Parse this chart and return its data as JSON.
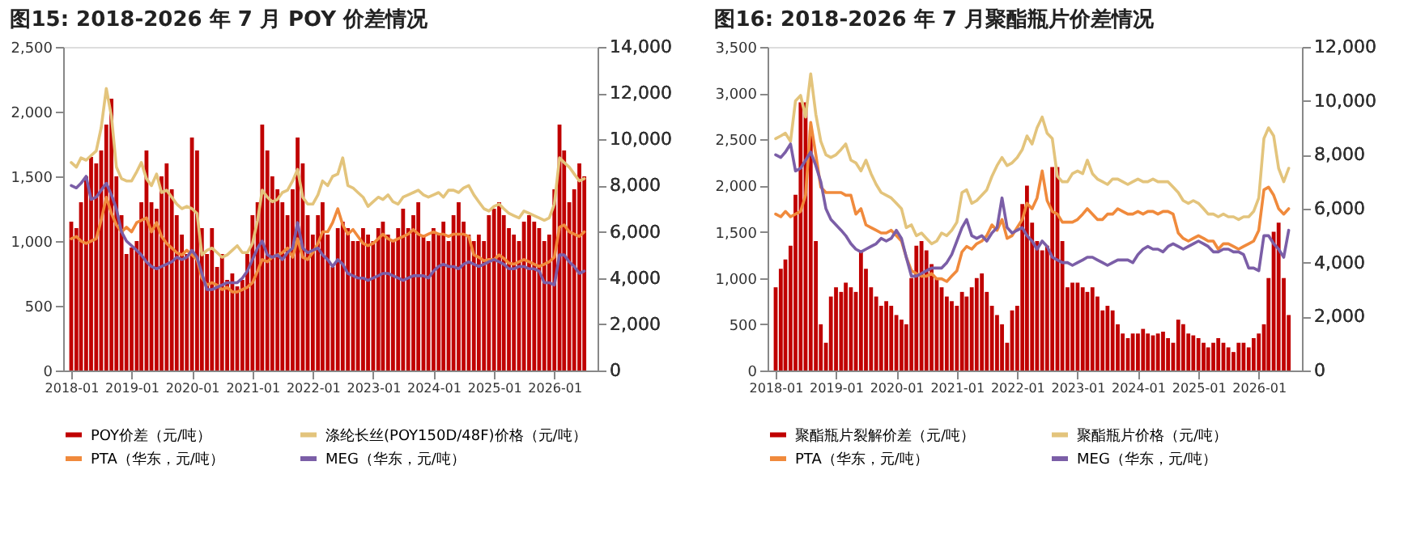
{
  "chart_data": [
    {
      "type": "bar",
      "title": "图15:  2018-2026 年 7 月 POY 价差情况",
      "x": [
        "2018-01",
        "2018-02",
        "2018-03",
        "2018-04",
        "2018-05",
        "2018-06",
        "2018-07",
        "2018-08",
        "2018-09",
        "2018-10",
        "2018-11",
        "2018-12",
        "2019-01",
        "2019-02",
        "2019-03",
        "2019-04",
        "2019-05",
        "2019-06",
        "2019-07",
        "2019-08",
        "2019-09",
        "2019-10",
        "2019-11",
        "2019-12",
        "2020-01",
        "2020-02",
        "2020-03",
        "2020-04",
        "2020-05",
        "2020-06",
        "2020-07",
        "2020-08",
        "2020-09",
        "2020-10",
        "2020-11",
        "2020-12",
        "2021-01",
        "2021-02",
        "2021-03",
        "2021-04",
        "2021-05",
        "2021-06",
        "2021-07",
        "2021-08",
        "2021-09",
        "2021-10",
        "2021-11",
        "2021-12",
        "2022-01",
        "2022-02",
        "2022-03",
        "2022-04",
        "2022-05",
        "2022-06",
        "2022-07",
        "2022-08",
        "2022-09",
        "2022-10",
        "2022-11",
        "2022-12",
        "2023-01",
        "2023-02",
        "2023-03",
        "2023-04",
        "2023-05",
        "2023-06",
        "2023-07",
        "2023-08",
        "2023-09",
        "2023-10",
        "2023-11",
        "2023-12",
        "2024-01",
        "2024-02",
        "2024-03",
        "2024-04",
        "2024-05",
        "2024-06",
        "2024-07",
        "2024-08",
        "2024-09",
        "2024-10",
        "2024-11",
        "2024-12",
        "2025-01",
        "2025-02",
        "2025-03",
        "2025-04",
        "2025-05",
        "2025-06",
        "2025-07",
        "2025-08",
        "2025-09",
        "2025-10",
        "2025-11",
        "2025-12",
        "2026-01",
        "2026-02",
        "2026-03",
        "2026-04",
        "2026-05",
        "2026-06",
        "2026-07"
      ],
      "xlim": [
        "2018-01",
        "2026-08"
      ],
      "xticks": [
        "2018-01",
        "2019-01",
        "2020-01",
        "2021-01",
        "2022-01",
        "2023-01",
        "2024-01",
        "2025-01",
        "2026-01"
      ],
      "ylim": [
        0,
        2500
      ],
      "yticks": [
        0,
        500,
        {
          "value": 1000,
          "label": "1,000"
        },
        {
          "value": 1500,
          "label": "1,500"
        },
        {
          "value": 2000,
          "label": "2,000"
        },
        {
          "value": 2500,
          "label": "2,500"
        }
      ],
      "y2lim": [
        0,
        14000
      ],
      "y2ticks": [
        0,
        {
          "value": 2000,
          "label": "2,000"
        },
        {
          "value": 4000,
          "label": "4,000"
        },
        {
          "value": 6000,
          "label": "6,000"
        },
        {
          "value": 8000,
          "label": "8,000"
        },
        {
          "value": 10000,
          "label": "10,000"
        },
        {
          "value": 12000,
          "label": "12,000"
        },
        {
          "value": 14000,
          "label": "14,000"
        }
      ],
      "grid": false,
      "legend": "bottom",
      "series": [
        {
          "name": "POY价差（元/吨）",
          "color": "#c00000",
          "values": [
            1150,
            1100,
            1300,
            1500,
            1650,
            1600,
            1700,
            1900,
            2100,
            1500,
            1200,
            900,
            950,
            1000,
            1300,
            1700,
            1300,
            1250,
            1500,
            1600,
            1400,
            1200,
            1050,
            900,
            1800,
            1700,
            1100,
            900,
            1100,
            800,
            900,
            700,
            750,
            650,
            700,
            900,
            1200,
            1300,
            1900,
            1700,
            1500,
            1400,
            1300,
            1200,
            1400,
            1800,
            1600,
            1200,
            1050,
            1200,
            1300,
            1050,
            800,
            1100,
            1150,
            1100,
            1000,
            1000,
            1100,
            1050,
            1000,
            1100,
            1150,
            1050,
            1000,
            1100,
            1250,
            1100,
            1200,
            1300,
            1050,
            1000,
            1100,
            1050,
            1150,
            1000,
            1200,
            1300,
            1150,
            1050,
            1000,
            1050,
            1000,
            1200,
            1250,
            1300,
            1200,
            1100,
            1050,
            1000,
            1150,
            1200,
            1150,
            1100,
            1000,
            1050,
            1400,
            1900,
            1700,
            1300,
            1400,
            1600,
            1500
          ]
        },
        {
          "name": "涤纶长丝(POY150D/48F)价格（元/吨）",
          "type": "line",
          "axis": "y2",
          "color": "#e3c47c",
          "values": [
            9000,
            8800,
            9200,
            9100,
            9300,
            9500,
            10500,
            12200,
            11000,
            8800,
            8300,
            8200,
            8200,
            8600,
            9000,
            8300,
            8000,
            8500,
            7700,
            7800,
            7500,
            7200,
            7000,
            7100,
            7000,
            6800,
            5000,
            5200,
            5300,
            5100,
            4900,
            5000,
            5200,
            5400,
            5100,
            5100,
            5500,
            6500,
            7800,
            7500,
            7300,
            7400,
            7700,
            7800,
            8200,
            8700,
            7500,
            7200,
            7200,
            7600,
            8200,
            8000,
            8400,
            8500,
            9200,
            8000,
            7900,
            7700,
            7500,
            7100,
            7300,
            7500,
            7400,
            7600,
            7300,
            7200,
            7500,
            7600,
            7700,
            7800,
            7600,
            7500,
            7600,
            7700,
            7500,
            7800,
            7800,
            7700,
            7900,
            8000,
            7600,
            7300,
            7000,
            6900,
            7100,
            7200,
            7000,
            6800,
            6700,
            6600,
            6900,
            6800,
            6700,
            6600,
            6500,
            6600,
            7200,
            9200,
            9000,
            8800,
            8500,
            8200,
            8300
          ]
        },
        {
          "name": "PTA（华东，元/吨）",
          "type": "line",
          "axis": "y2",
          "color": "#f08a3c",
          "values": [
            5700,
            5800,
            5600,
            5500,
            5600,
            5700,
            6500,
            7500,
            6800,
            6300,
            6000,
            6200,
            6000,
            6400,
            6500,
            6600,
            6000,
            6400,
            5800,
            5500,
            5300,
            5100,
            5000,
            5200,
            5000,
            4800,
            4000,
            3700,
            3800,
            3700,
            3500,
            3600,
            3400,
            3400,
            3500,
            3600,
            3800,
            4300,
            4800,
            4700,
            4900,
            5000,
            5100,
            5300,
            4900,
            5700,
            4900,
            4800,
            5100,
            5500,
            6000,
            6000,
            6400,
            7000,
            6300,
            5900,
            6100,
            5800,
            5500,
            5400,
            5500,
            5700,
            5900,
            5700,
            5600,
            5700,
            5800,
            5900,
            6100,
            5900,
            5800,
            5900,
            6000,
            5900,
            5900,
            5800,
            5900,
            5900,
            5900,
            5800,
            5000,
            4900,
            4750,
            4800,
            4800,
            5000,
            4850,
            4650,
            4600,
            4700,
            4800,
            4700,
            4600,
            4500,
            4600,
            4700,
            4900,
            6200,
            6300,
            6000,
            5900,
            5800,
            6000
          ]
        },
        {
          "name": "MEG（华东，元/吨）",
          "type": "line",
          "axis": "y2",
          "color": "#7b5ea7",
          "values": [
            8000,
            7900,
            8100,
            8400,
            7400,
            7500,
            7800,
            8100,
            7600,
            7000,
            6000,
            5600,
            5400,
            5200,
            5000,
            4700,
            4500,
            4400,
            4500,
            4600,
            4700,
            4900,
            4800,
            4900,
            5200,
            4900,
            4200,
            3500,
            3500,
            3600,
            3700,
            3800,
            3800,
            3800,
            4000,
            4300,
            4800,
            5300,
            5600,
            5000,
            4900,
            5000,
            4800,
            5100,
            5300,
            6400,
            5300,
            5100,
            5200,
            5300,
            5000,
            4800,
            4500,
            4800,
            4600,
            4200,
            4100,
            4000,
            4000,
            3900,
            4000,
            4100,
            4200,
            4200,
            4100,
            4000,
            3900,
            4000,
            4100,
            4100,
            4100,
            4000,
            4300,
            4500,
            4600,
            4500,
            4500,
            4400,
            4600,
            4700,
            4600,
            4500,
            4600,
            4700,
            4800,
            4700,
            4600,
            4400,
            4400,
            4500,
            4500,
            4400,
            4400,
            4300,
            3800,
            3800,
            3700,
            5000,
            5000,
            4700,
            4500,
            4200,
            4300
          ]
        }
      ]
    },
    {
      "type": "bar",
      "title": "图16:  2018-2026 年 7 月聚酯瓶片价差情况",
      "x": [
        "2018-01",
        "2018-02",
        "2018-03",
        "2018-04",
        "2018-05",
        "2018-06",
        "2018-07",
        "2018-08",
        "2018-09",
        "2018-10",
        "2018-11",
        "2018-12",
        "2019-01",
        "2019-02",
        "2019-03",
        "2019-04",
        "2019-05",
        "2019-06",
        "2019-07",
        "2019-08",
        "2019-09",
        "2019-10",
        "2019-11",
        "2019-12",
        "2020-01",
        "2020-02",
        "2020-03",
        "2020-04",
        "2020-05",
        "2020-06",
        "2020-07",
        "2020-08",
        "2020-09",
        "2020-10",
        "2020-11",
        "2020-12",
        "2021-01",
        "2021-02",
        "2021-03",
        "2021-04",
        "2021-05",
        "2021-06",
        "2021-07",
        "2021-08",
        "2021-09",
        "2021-10",
        "2021-11",
        "2021-12",
        "2022-01",
        "2022-02",
        "2022-03",
        "2022-04",
        "2022-05",
        "2022-06",
        "2022-07",
        "2022-08",
        "2022-09",
        "2022-10",
        "2022-11",
        "2022-12",
        "2023-01",
        "2023-02",
        "2023-03",
        "2023-04",
        "2023-05",
        "2023-06",
        "2023-07",
        "2023-08",
        "2023-09",
        "2023-10",
        "2023-11",
        "2023-12",
        "2024-01",
        "2024-02",
        "2024-03",
        "2024-04",
        "2024-05",
        "2024-06",
        "2024-07",
        "2024-08",
        "2024-09",
        "2024-10",
        "2024-11",
        "2024-12",
        "2025-01",
        "2025-02",
        "2025-03",
        "2025-04",
        "2025-05",
        "2025-06",
        "2025-07",
        "2025-08",
        "2025-09",
        "2025-10",
        "2025-11",
        "2025-12",
        "2026-01",
        "2026-02",
        "2026-03",
        "2026-04",
        "2026-05",
        "2026-06",
        "2026-07"
      ],
      "xlim": [
        "2018-01",
        "2026-08"
      ],
      "xticks": [
        "2018-01",
        "2019-01",
        "2020-01",
        "2021-01",
        "2022-01",
        "2023-01",
        "2024-01",
        "2025-01",
        "2026-01"
      ],
      "ylim": [
        0,
        3500
      ],
      "yticks": [
        0,
        500,
        {
          "value": 1000,
          "label": "1,000"
        },
        {
          "value": 1500,
          "label": "1,500"
        },
        {
          "value": 2000,
          "label": "2,000"
        },
        {
          "value": 2500,
          "label": "2,500"
        },
        {
          "value": 3000,
          "label": "3,000"
        },
        {
          "value": 3500,
          "label": "3,500"
        }
      ],
      "y2lim": [
        0,
        12000
      ],
      "y2ticks": [
        0,
        {
          "value": 2000,
          "label": "2,000"
        },
        {
          "value": 4000,
          "label": "4,000"
        },
        {
          "value": 6000,
          "label": "6,000"
        },
        {
          "value": 8000,
          "label": "8,000"
        },
        {
          "value": 10000,
          "label": "10,000"
        },
        {
          "value": 12000,
          "label": "12,000"
        }
      ],
      "grid": false,
      "legend": "bottom",
      "series": [
        {
          "name": "聚酯瓶片裂解价差（元/吨）",
          "color": "#c00000",
          "values": [
            900,
            1100,
            1200,
            1350,
            1900,
            2900,
            2900,
            2600,
            1400,
            500,
            300,
            800,
            900,
            850,
            950,
            900,
            850,
            1300,
            1100,
            900,
            800,
            700,
            750,
            700,
            600,
            550,
            500,
            1000,
            1350,
            1400,
            1300,
            1150,
            1000,
            900,
            800,
            750,
            700,
            850,
            800,
            900,
            1000,
            1050,
            850,
            700,
            600,
            500,
            300,
            650,
            700,
            1800,
            2000,
            1600,
            1400,
            1300,
            1350,
            2200,
            2200,
            1400,
            900,
            950,
            950,
            900,
            850,
            900,
            800,
            650,
            700,
            650,
            500,
            400,
            350,
            400,
            400,
            450,
            400,
            380,
            400,
            420,
            350,
            300,
            550,
            500,
            400,
            380,
            350,
            300,
            250,
            300,
            350,
            300,
            250,
            200,
            300,
            300,
            250,
            350,
            400,
            500,
            1000,
            1500,
            1600,
            1000,
            600
          ]
        },
        {
          "name": "聚酯瓶片价格（元/吨）",
          "type": "line",
          "axis": "y2",
          "color": "#e3c47c",
          "values": [
            8600,
            8700,
            8800,
            8500,
            10000,
            10200,
            9400,
            11000,
            9500,
            8500,
            8000,
            7900,
            8000,
            8200,
            8400,
            7800,
            7700,
            7400,
            7800,
            7300,
            6900,
            6600,
            6500,
            6400,
            6200,
            6000,
            5300,
            5400,
            5000,
            5100,
            4900,
            4700,
            4800,
            5100,
            5000,
            5200,
            5500,
            6600,
            6700,
            6200,
            6300,
            6500,
            6700,
            7200,
            7600,
            7900,
            7600,
            7700,
            7900,
            8200,
            8700,
            8400,
            9000,
            9400,
            8800,
            8600,
            7200,
            7000,
            7000,
            7300,
            7400,
            7300,
            7800,
            7300,
            7100,
            7000,
            6900,
            7100,
            7100,
            7000,
            6900,
            7000,
            7100,
            7000,
            7000,
            7100,
            7000,
            7000,
            7000,
            6800,
            6600,
            6300,
            6200,
            6300,
            6200,
            6000,
            5800,
            5800,
            5700,
            5800,
            5700,
            5700,
            5600,
            5700,
            5700,
            5900,
            6400,
            8600,
            9000,
            8700,
            7500,
            7000,
            7500
          ]
        },
        {
          "name": "PTA（华东，元/吨）",
          "type": "line",
          "axis": "y2",
          "color": "#f08a3c",
          "values": [
            5800,
            5700,
            5900,
            5700,
            5800,
            5900,
            6500,
            9200,
            8000,
            6800,
            6600,
            6600,
            6600,
            6600,
            6500,
            6500,
            5800,
            6000,
            5400,
            5300,
            5200,
            5100,
            5100,
            5200,
            5000,
            4800,
            4200,
            3700,
            3600,
            3500,
            3500,
            3600,
            3400,
            3400,
            3300,
            3500,
            3700,
            4400,
            4600,
            4500,
            4700,
            4800,
            5000,
            5400,
            5200,
            5600,
            4900,
            5000,
            5300,
            5600,
            6200,
            6000,
            6400,
            7400,
            6300,
            5900,
            5800,
            5500,
            5500,
            5500,
            5600,
            5800,
            6000,
            5800,
            5600,
            5600,
            5800,
            5800,
            6000,
            5900,
            5800,
            5800,
            5900,
            5800,
            5900,
            5900,
            5800,
            5900,
            5900,
            5800,
            5100,
            4900,
            4800,
            4900,
            5000,
            4900,
            4800,
            4800,
            4500,
            4700,
            4700,
            4600,
            4500,
            4600,
            4700,
            4800,
            5200,
            6700,
            6800,
            6500,
            6000,
            5800,
            6000
          ]
        },
        {
          "name": "MEG（华东，元/吨）",
          "type": "line",
          "axis": "y2",
          "color": "#7b5ea7",
          "values": [
            8000,
            7900,
            8100,
            8400,
            7400,
            7500,
            7800,
            8100,
            7600,
            7000,
            6000,
            5600,
            5400,
            5200,
            5000,
            4700,
            4500,
            4400,
            4500,
            4600,
            4700,
            4900,
            4800,
            4900,
            5200,
            4900,
            4200,
            3500,
            3500,
            3600,
            3700,
            3800,
            3800,
            3800,
            4000,
            4300,
            4800,
            5300,
            5600,
            5000,
            4900,
            5000,
            4800,
            5100,
            5300,
            6400,
            5300,
            5100,
            5200,
            5300,
            5000,
            4800,
            4500,
            4800,
            4600,
            4200,
            4100,
            4000,
            4000,
            3900,
            4000,
            4100,
            4200,
            4200,
            4100,
            4000,
            3900,
            4000,
            4100,
            4100,
            4100,
            4000,
            4300,
            4500,
            4600,
            4500,
            4500,
            4400,
            4600,
            4700,
            4600,
            4500,
            4600,
            4700,
            4800,
            4700,
            4600,
            4400,
            4400,
            4500,
            4500,
            4400,
            4400,
            4300,
            3800,
            3800,
            3700,
            5000,
            5000,
            4700,
            4500,
            4200,
            5200
          ]
        }
      ]
    }
  ]
}
